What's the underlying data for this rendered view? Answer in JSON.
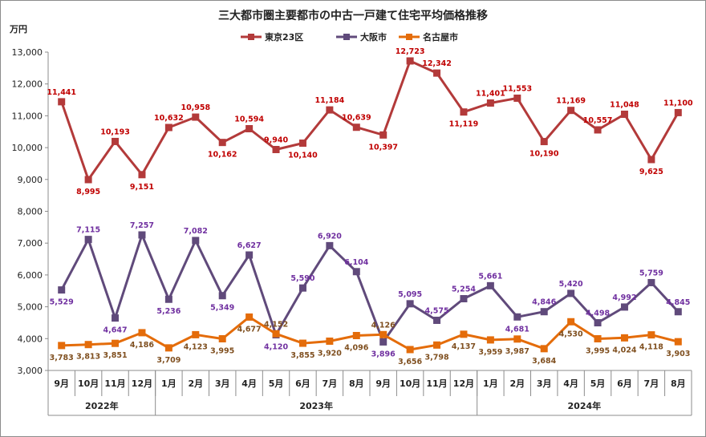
{
  "chart_data": {
    "type": "line",
    "title": "三大都市圏主要都市の中古一戸建て住宅平均価格推移",
    "ylabel": "万円",
    "ylim": [
      3000,
      13000
    ],
    "y_ticks": [
      "3,000",
      "4,000",
      "5,000",
      "6,000",
      "7,000",
      "8,000",
      "9,000",
      "10,000",
      "11,000",
      "12,000",
      "13,000"
    ],
    "grid": false,
    "legend_position": "top",
    "categories": [
      "9月",
      "10月",
      "11月",
      "12月",
      "1月",
      "2月",
      "3月",
      "4月",
      "5月",
      "6月",
      "7月",
      "8月",
      "9月",
      "10月",
      "11月",
      "12月",
      "1月",
      "2月",
      "3月",
      "4月",
      "5月",
      "6月",
      "7月",
      "8月"
    ],
    "year_groups": [
      {
        "label": "2022年",
        "start": 0,
        "end": 3
      },
      {
        "label": "2023年",
        "start": 4,
        "end": 15
      },
      {
        "label": "2024年",
        "start": 16,
        "end": 23
      }
    ],
    "series": [
      {
        "name": "東京23区",
        "color": "#b33a3a",
        "label_color": "#c00000",
        "marker": "square",
        "values": [
          11441,
          8995,
          10193,
          9151,
          10632,
          10958,
          10162,
          10594,
          9940,
          10140,
          11184,
          10639,
          10397,
          12723,
          12342,
          11119,
          11401,
          11553,
          10190,
          11169,
          10557,
          11048,
          9625,
          11100
        ],
        "labels": [
          "11,441",
          "8,995",
          "10,193",
          "9,151",
          "10,632",
          "10,958",
          "10,162",
          "10,594",
          "9,940",
          "10,140",
          "11,184",
          "10,639",
          "10,397",
          "12,723",
          "12,342",
          "11,119",
          "11,401",
          "11,553",
          "10,190",
          "11,169",
          "10,557",
          "11,048",
          "9,625",
          "11,100"
        ],
        "label_pos": [
          "above",
          "below",
          "above",
          "below",
          "above",
          "above",
          "below",
          "above",
          "above",
          "below",
          "above",
          "above",
          "below",
          "above",
          "above",
          "below",
          "above",
          "above",
          "below",
          "above",
          "above",
          "above",
          "below",
          "above"
        ]
      },
      {
        "name": "大阪市",
        "color": "#604a7b",
        "label_color": "#7030a0",
        "marker": "square",
        "values": [
          5529,
          7115,
          4647,
          7257,
          5236,
          7082,
          5349,
          6627,
          4120,
          5590,
          6920,
          6104,
          3896,
          5095,
          4575,
          5254,
          5661,
          4681,
          4846,
          5420,
          4498,
          4992,
          5759,
          4845
        ],
        "labels": [
          "5,529",
          "7,115",
          "4,647",
          "7,257",
          "5,236",
          "7,082",
          "5,349",
          "6,627",
          "4,120",
          "5,590",
          "6,920",
          "6,104",
          "3,896",
          "5,095",
          "4,575",
          "5,254",
          "5,661",
          "4,681",
          "4,846",
          "5,420",
          "4,498",
          "4,992",
          "5,759",
          "4,845"
        ],
        "label_pos": [
          "below",
          "above",
          "below",
          "above",
          "below",
          "above",
          "below",
          "above",
          "below",
          "above",
          "above",
          "above",
          "below",
          "above",
          "above",
          "above",
          "above",
          "below",
          "above",
          "above",
          "above",
          "above",
          "above",
          "above"
        ]
      },
      {
        "name": "名古屋市",
        "color": "#e46c0a",
        "label_color": "#7f4f1f",
        "marker": "square",
        "values": [
          3783,
          3813,
          3851,
          4186,
          3709,
          4123,
          3995,
          4677,
          4152,
          3855,
          3920,
          4096,
          4126,
          3656,
          3798,
          4137,
          3959,
          3987,
          3684,
          4530,
          3995,
          4024,
          4118,
          3903
        ],
        "labels": [
          "3,783",
          "3,813",
          "3,851",
          "4,186",
          "3,709",
          "4,123",
          "3,995",
          "4,677",
          "4,152",
          "3,855",
          "3,920",
          "4,096",
          "4,126",
          "3,656",
          "3,798",
          "4,137",
          "3,959",
          "3,987",
          "3,684",
          "4,530",
          "3,995",
          "4,024",
          "4,118",
          "3,903"
        ],
        "label_pos": [
          "below",
          "below",
          "below",
          "below",
          "below",
          "below",
          "below",
          "below",
          "above",
          "below",
          "below",
          "below",
          "above",
          "below",
          "below",
          "below",
          "below",
          "below",
          "below",
          "below",
          "below",
          "below",
          "below",
          "below"
        ]
      }
    ]
  }
}
